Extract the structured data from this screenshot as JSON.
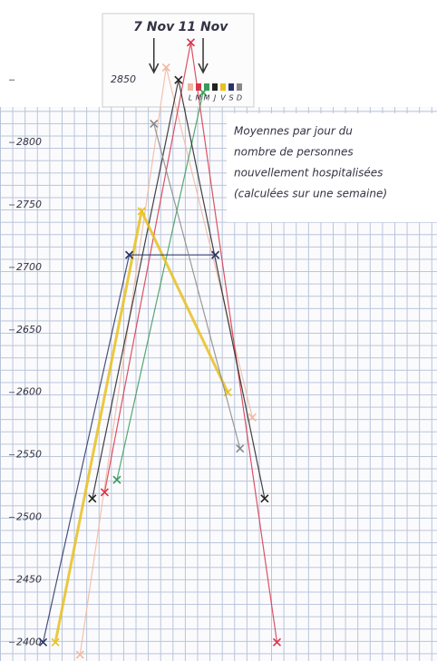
{
  "chart_data": {
    "type": "line",
    "note_lines": [
      "Moyennes par jour du",
      "nombre de personnes",
      "nouvellement hospitalisées",
      "(calculées sur une semaine)"
    ],
    "annotations": [
      {
        "text": "7 Nov",
        "x": 6
      },
      {
        "text": "11 Nov",
        "x": 10
      }
    ],
    "xlim": [
      -6.5,
      29
    ],
    "ylim": [
      2385,
      2914
    ],
    "yticks": [
      2400,
      2450,
      2500,
      2550,
      2600,
      2650,
      2700,
      2750,
      2800,
      2850
    ],
    "series": [
      {
        "name": "L",
        "color": "#f0b8a0",
        "x": [
          0,
          7,
          14
        ],
        "values": [
          2390,
          2860,
          2580
        ]
      },
      {
        "name": "M",
        "color": "#d8344a",
        "x": [
          2,
          9,
          16
        ],
        "values": [
          2520,
          2880,
          2400
        ]
      },
      {
        "name": "M",
        "color": "#3a9a5a",
        "x": [
          3,
          10
        ],
        "values": [
          2530,
          2840
        ]
      },
      {
        "name": "J",
        "color": "#222222",
        "x": [
          1,
          8,
          15
        ],
        "values": [
          2515,
          2850,
          2515
        ]
      },
      {
        "name": "V",
        "color": "#e8c020",
        "x": [
          -2,
          5,
          12
        ],
        "values": [
          2400,
          2745,
          2600
        ]
      },
      {
        "name": "S",
        "color": "#2a3468",
        "x": [
          -3,
          4,
          11
        ],
        "values": [
          2400,
          2710,
          2710
        ]
      },
      {
        "name": "D",
        "color": "#888888",
        "x": [
          6,
          13
        ],
        "values": [
          2815,
          2555
        ]
      }
    ]
  }
}
